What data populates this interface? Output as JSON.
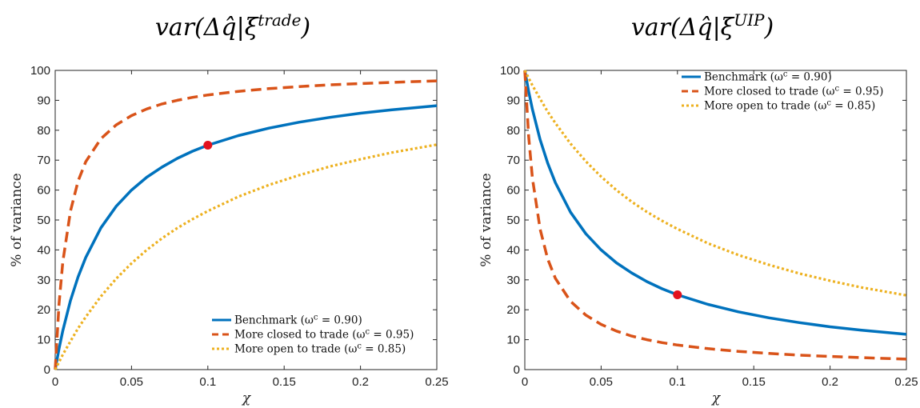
{
  "chart_data": [
    {
      "type": "line",
      "title_text": "var(Δq̂|ξ",
      "title_sup": "trade",
      "title_close": ")",
      "xlabel": "χ",
      "ylabel": "% of variance",
      "xlim": [
        0,
        0.25
      ],
      "ylim": [
        0,
        100
      ],
      "xticks": [
        "0",
        "0.05",
        "0.1",
        "0.15",
        "0.2",
        "0.25"
      ],
      "yticks": [
        "0",
        "10",
        "20",
        "30",
        "40",
        "50",
        "60",
        "70",
        "80",
        "90",
        "100"
      ],
      "legend_position": "bottom-right",
      "x": [
        0,
        0.0025,
        0.005,
        0.01,
        0.015,
        0.02,
        0.03,
        0.04,
        0.05,
        0.06,
        0.07,
        0.08,
        0.09,
        0.1,
        0.12,
        0.14,
        0.16,
        0.18,
        0.2,
        0.22,
        0.25
      ],
      "series": [
        {
          "name": "Benchmark (ω^c = 0.90)",
          "color": "#0072BD",
          "style": "solid",
          "values": [
            0,
            7.0,
            13.0,
            23.1,
            31.0,
            37.5,
            47.4,
            54.6,
            60.0,
            64.3,
            67.7,
            70.6,
            73.0,
            75.0,
            78.2,
            80.7,
            82.7,
            84.3,
            85.7,
            86.8,
            88.2
          ]
        },
        {
          "name": "More closed to trade (ω^c = 0.95)",
          "color": "#D95319",
          "style": "dashed",
          "values": [
            0,
            22.0,
            36.0,
            53.0,
            63.0,
            69.5,
            77.2,
            81.8,
            84.9,
            87.1,
            88.8,
            90.0,
            91.0,
            91.8,
            93.0,
            93.9,
            94.6,
            95.2,
            95.6,
            96.0,
            96.5
          ]
        },
        {
          "name": "More open to trade (ω^c = 0.85)",
          "color": "#EDB120",
          "style": "dotted",
          "values": [
            0,
            2.5,
            5.0,
            9.5,
            13.8,
            17.6,
            24.5,
            30.4,
            35.5,
            40.0,
            43.9,
            47.3,
            50.3,
            53.0,
            57.8,
            61.7,
            65.0,
            67.9,
            70.3,
            72.5,
            75.2
          ]
        }
      ],
      "marker": {
        "x": 0.1,
        "y": 75,
        "color": "#E3121E"
      }
    },
    {
      "type": "line",
      "title_text": "var(Δq̂|ξ",
      "title_sup": "UIP",
      "title_close": ")",
      "xlabel": "χ",
      "ylabel": "% of variance",
      "xlim": [
        0,
        0.25
      ],
      "ylim": [
        0,
        100
      ],
      "xticks": [
        "0",
        "0.05",
        "0.1",
        "0.15",
        "0.2",
        "0.25"
      ],
      "yticks": [
        "0",
        "10",
        "20",
        "30",
        "40",
        "50",
        "60",
        "70",
        "80",
        "90",
        "100"
      ],
      "legend_position": "top-right",
      "x": [
        0,
        0.0025,
        0.005,
        0.01,
        0.015,
        0.02,
        0.03,
        0.04,
        0.05,
        0.06,
        0.07,
        0.08,
        0.09,
        0.1,
        0.12,
        0.14,
        0.16,
        0.18,
        0.2,
        0.22,
        0.25
      ],
      "series": [
        {
          "name": "Benchmark (ω^c = 0.90)",
          "color": "#0072BD",
          "style": "solid",
          "values": [
            100,
            93.0,
            87.0,
            76.9,
            69.0,
            62.5,
            52.6,
            45.4,
            40.0,
            35.7,
            32.3,
            29.4,
            27.0,
            25.0,
            21.8,
            19.3,
            17.3,
            15.7,
            14.3,
            13.2,
            11.8
          ]
        },
        {
          "name": "More closed to trade (ω^c = 0.95)",
          "color": "#D95319",
          "style": "dashed",
          "values": [
            100,
            78.0,
            64.0,
            47.0,
            37.0,
            30.5,
            22.8,
            18.2,
            15.1,
            12.9,
            11.2,
            10.0,
            9.0,
            8.2,
            7.0,
            6.1,
            5.4,
            4.8,
            4.4,
            4.0,
            3.5
          ]
        },
        {
          "name": "More open to trade (ω^c = 0.85)",
          "color": "#EDB120",
          "style": "dotted",
          "values": [
            100,
            97.5,
            95.0,
            90.5,
            86.2,
            82.4,
            75.5,
            69.6,
            64.5,
            60.0,
            56.1,
            52.7,
            49.7,
            47.0,
            42.2,
            38.3,
            35.0,
            32.1,
            29.7,
            27.5,
            24.8
          ]
        }
      ],
      "marker": {
        "x": 0.1,
        "y": 25,
        "color": "#E3121E"
      }
    }
  ]
}
